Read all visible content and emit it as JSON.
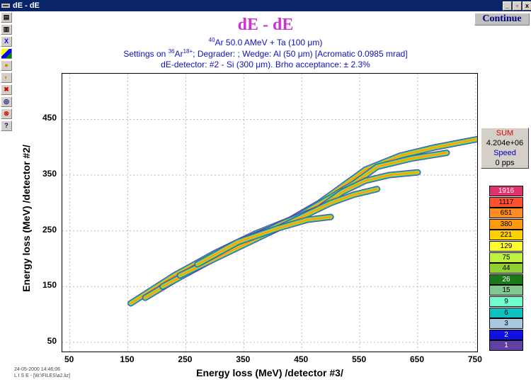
{
  "window": {
    "title": "dE - dE"
  },
  "continue_label": "Continue",
  "header": {
    "title": "dE - dE",
    "line1_sup": "40",
    "line1_text": "Ar 50.0 AMeV + Ta (100 μm)",
    "line2_prefix": "Settings on ",
    "line2_sup1": "36",
    "line2_mid": "Ar",
    "line2_sup2": "18+",
    "line2_suffix": "; Degrader:  ; Wedge: Al (50 μm) [Acromatic 0.0985 mrad]",
    "line3": "dE-detector: #2 -  Si (300 μm). Brho acceptance: ± 2.3%"
  },
  "sum_panel": {
    "sum_label": "SUM",
    "sum_value": "4.204e+06",
    "speed_label": "Speed",
    "speed_value": "0 pps"
  },
  "legend": [
    {
      "label": "1916",
      "color": "#e03070"
    },
    {
      "label": "1117",
      "color": "#ff5030"
    },
    {
      "label": "651",
      "color": "#ff8c20"
    },
    {
      "label": "380",
      "color": "#ff9a10"
    },
    {
      "label": "221",
      "color": "#ffd000"
    },
    {
      "label": "129",
      "color": "#ffff30"
    },
    {
      "label": "75",
      "color": "#c0f040"
    },
    {
      "label": "44",
      "color": "#90d030"
    },
    {
      "label": "26",
      "color": "#1a7a1a"
    },
    {
      "label": "15",
      "color": "#80c890"
    },
    {
      "label": "9",
      "color": "#70ffd0"
    },
    {
      "label": "6",
      "color": "#10c0c0"
    },
    {
      "label": "3",
      "color": "#a8c8e0"
    },
    {
      "label": "2",
      "color": "#1010e0"
    },
    {
      "label": "1",
      "color": "#6040a0"
    }
  ],
  "footer": {
    "line1": "24-05-2000  14:46:06",
    "line2": "L I S E  - [W:\\FILES\\a2.liz]"
  },
  "chart_data": {
    "type": "heatmap",
    "title": "dE - dE",
    "xlabel": "Energy loss (MeV) /detector #3/",
    "ylabel": "Energy loss (MeV) /detector #2/",
    "xlim": [
      37,
      755
    ],
    "ylim": [
      31,
      532
    ],
    "xticks": [
      50,
      150,
      250,
      350,
      450,
      550,
      650,
      750
    ],
    "yticks": [
      50,
      150,
      250,
      350,
      450
    ],
    "grid": true,
    "series": [
      {
        "x": [
          155,
          230,
          300,
          370,
          430,
          480,
          520,
          560,
          620,
          680,
          755
        ],
        "y": [
          120,
          170,
          210,
          245,
          270,
          300,
          330,
          360,
          385,
          400,
          415
        ]
      },
      {
        "x": [
          180,
          260,
          330,
          400,
          450,
          500,
          540,
          580,
          640,
          700
        ],
        "y": [
          130,
          180,
          225,
          255,
          280,
          310,
          335,
          365,
          380,
          390
        ]
      },
      {
        "x": [
          210,
          290,
          360,
          420,
          480,
          520,
          560,
          600,
          650
        ],
        "y": [
          150,
          195,
          235,
          265,
          290,
          320,
          340,
          350,
          355
        ]
      },
      {
        "x": [
          240,
          320,
          390,
          450,
          500,
          540,
          580
        ],
        "y": [
          170,
          210,
          245,
          275,
          300,
          315,
          325
        ]
      },
      {
        "x": [
          270,
          340,
          410,
          460,
          500
        ],
        "y": [
          190,
          230,
          255,
          270,
          275
        ]
      }
    ]
  }
}
